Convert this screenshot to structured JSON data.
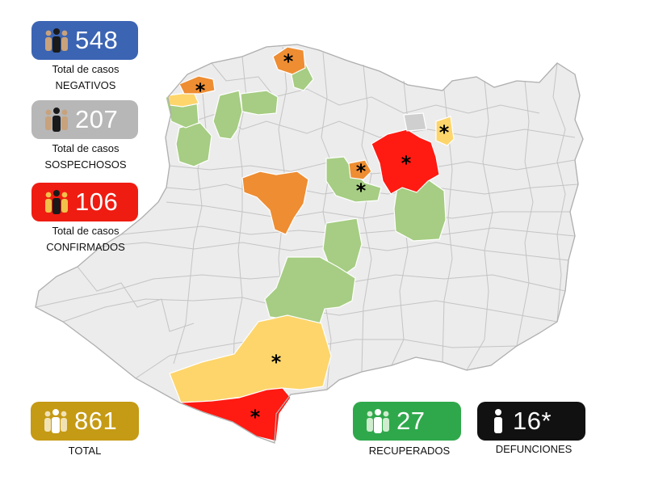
{
  "stats": {
    "negativos": {
      "value": "548",
      "line1": "Total de casos",
      "line2": "NEGATIVOS",
      "color": "#3b64b3"
    },
    "sospechosos": {
      "value": "207",
      "line1": "Total de casos",
      "line2": "SOSPECHOSOS",
      "color": "#b7b7b7"
    },
    "confirmados": {
      "value": "106",
      "line1": "Total de casos",
      "line2": "CONFIRMADOS",
      "color": "#ef1c12"
    },
    "total": {
      "value": "861",
      "label": "TOTAL",
      "color": "#c59a14"
    },
    "recuperados": {
      "value": "27",
      "label": "RECUPERADOS",
      "color": "#2fa84b"
    },
    "defunciones": {
      "value": "16*",
      "label": "DEFUNCIONES",
      "color": "#111111"
    }
  },
  "map": {
    "marker_symbol": "*",
    "colors": {
      "base": "#ececec",
      "outline": "#bdbdbd",
      "green": "#a6cd83",
      "yellow": "#fdd56b",
      "orange": "#ee8d32",
      "red": "#ff1a12",
      "gray": "#cfcfcf"
    }
  }
}
